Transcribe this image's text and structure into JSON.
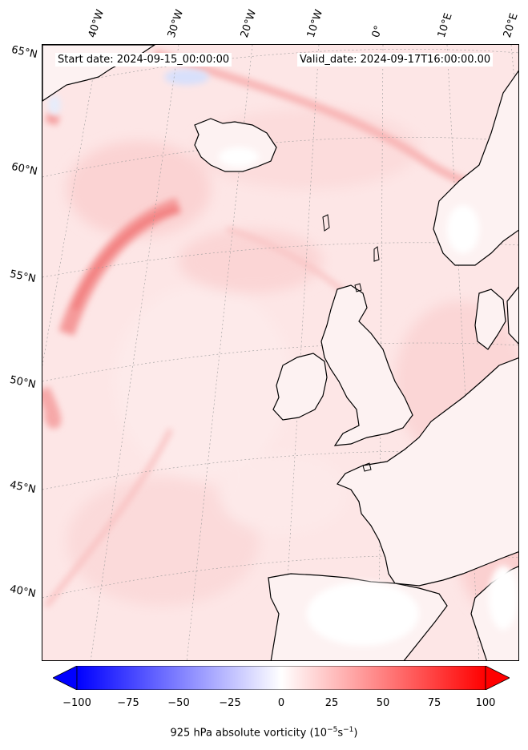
{
  "map": {
    "start_date": "Start date: 2024-09-15_00:00:00",
    "valid_date": "Valid_date: 2024-09-17T16:00:00.00",
    "lon_labels": [
      "40°W",
      "30°W",
      "20°W",
      "10°W",
      "0°",
      "10°E",
      "20°E"
    ],
    "lat_labels": [
      "65°N",
      "60°N",
      "55°N",
      "50°N",
      "45°N",
      "40°N"
    ],
    "field": "925 hPa absolute vorticity",
    "colormap": "bwr",
    "land_outline_color": "#000000",
    "gridlines": true
  },
  "colorbar": {
    "ticks": [
      "−100",
      "−75",
      "−50",
      "−25",
      "0",
      "25",
      "50",
      "75",
      "100"
    ],
    "range": [
      -100,
      100
    ],
    "extend": "both",
    "label_main": "925 hPa absolute vorticity (10",
    "label_exp1": "−5",
    "label_mid": "s",
    "label_exp2": "−1",
    "label_end": ")",
    "colors": {
      "min": "#0000ff",
      "mid": "#ffffff",
      "max": "#ff0000"
    }
  }
}
